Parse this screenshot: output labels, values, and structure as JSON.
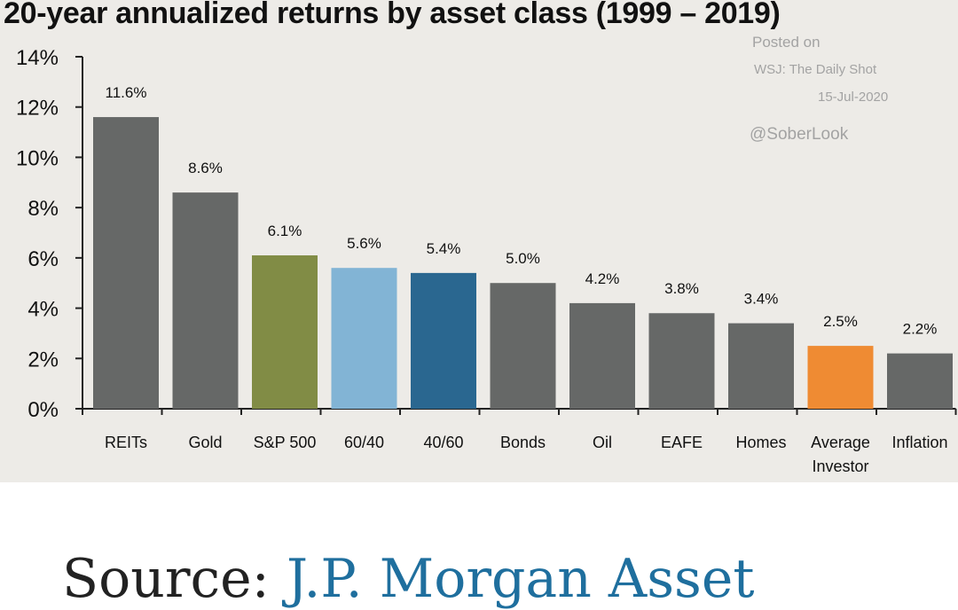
{
  "chart_data": {
    "type": "bar",
    "title": "20-year annualized returns by asset class (1999 – 2019)",
    "categories": [
      "REITs",
      "Gold",
      "S&P 500",
      "60/40",
      "40/60",
      "Bonds",
      "Oil",
      "EAFE",
      "Homes",
      "Average Investor",
      "Inflation"
    ],
    "category_lines": [
      [
        "REITs"
      ],
      [
        "Gold"
      ],
      [
        "S&P 500"
      ],
      [
        "60/40"
      ],
      [
        "40/60"
      ],
      [
        "Bonds"
      ],
      [
        "Oil"
      ],
      [
        "EAFE"
      ],
      [
        "Homes"
      ],
      [
        "Average",
        "Investor"
      ],
      [
        "Inflation"
      ]
    ],
    "values": [
      11.6,
      8.6,
      6.1,
      5.6,
      5.4,
      5.0,
      4.2,
      3.8,
      3.4,
      2.5,
      2.2
    ],
    "data_labels": [
      "11.6%",
      "8.6%",
      "6.1%",
      "5.6%",
      "5.4%",
      "5.0%",
      "4.2%",
      "3.8%",
      "3.4%",
      "2.5%",
      "2.2%"
    ],
    "bar_colors": [
      "#666867",
      "#666867",
      "#818c45",
      "#82b4d5",
      "#2a6790",
      "#666867",
      "#666867",
      "#666867",
      "#666867",
      "#ef8b33",
      "#666867"
    ],
    "ylim": [
      0,
      14
    ],
    "yticks": [
      0,
      2,
      4,
      6,
      8,
      10,
      12,
      14
    ],
    "ytick_labels": [
      "0%",
      "2%",
      "4%",
      "6%",
      "8%",
      "10%",
      "12%",
      "14%"
    ],
    "xlabel": "",
    "ylabel": "",
    "grid": false,
    "legend": "none"
  },
  "annotations": {
    "posted": "Posted on",
    "source": "WSJ: The Daily Shot",
    "date": "15-Jul-2020",
    "handle": "@SoberLook"
  },
  "footer": {
    "source_label": "Source: ",
    "source_link": "J.P. Morgan Asset"
  },
  "colors": {
    "panel_background": "#edebe7",
    "axis": "#222222",
    "link": "#1f6f9e"
  }
}
